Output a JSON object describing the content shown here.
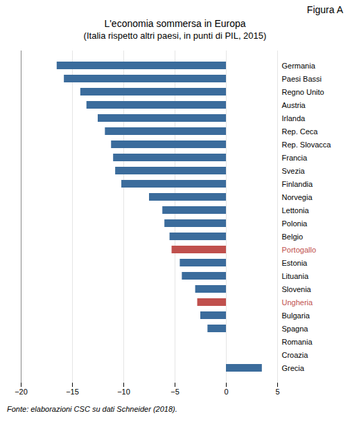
{
  "chart_data": {
    "type": "bar",
    "orientation": "horizontal",
    "title": "L'economia sommersa in Europa",
    "subtitle": "(Italia rispetto altri paesi, in punti di PIL, 2015)",
    "annotations": [
      "Figura A"
    ],
    "caption": "Fonte: elaborazioni CSC su dati Schneider (2018).",
    "categories": [
      "Germania",
      "Paesi Bassi",
      "Regno Unito",
      "Austria",
      "Irlanda",
      "Rep. Ceca",
      "Rep. Slovacca",
      "Francia",
      "Svezia",
      "Finlandia",
      "Norvegia",
      "Lettonia",
      "Polonia",
      "Belgio",
      "Portogallo",
      "Estonia",
      "Lituania",
      "Slovenia",
      "Ungheria",
      "Bulgaria",
      "Spagna",
      "Romania",
      "Croazia",
      "Grecia"
    ],
    "values": [
      -16.5,
      -15.8,
      -14.2,
      -13.6,
      -12.5,
      -11.8,
      -11.2,
      -11.0,
      -10.8,
      -10.2,
      -7.5,
      -6.2,
      -6.0,
      -5.5,
      -5.3,
      -4.5,
      -4.3,
      -3.0,
      -2.8,
      -2.5,
      -1.8,
      0.0,
      0.0,
      3.5
    ],
    "color": "#3B6C9C",
    "colors": [
      "#3B6C9C",
      "#3B6C9C",
      "#3B6C9C",
      "#3B6C9C",
      "#3B6C9C",
      "#3B6C9C",
      "#3B6C9C",
      "#3B6C9C",
      "#3B6C9C",
      "#3B6C9C",
      "#3B6C9C",
      "#3B6C9C",
      "#3B6C9C",
      "#3B6C9C",
      "#C0504D",
      "#3B6C9C",
      "#3B6C9C",
      "#3B6C9C",
      "#C0504D",
      "#3B6C9C",
      "#3B6C9C",
      "#3B6C9C",
      "#3B6C9C",
      "#3B6C9C"
    ],
    "xlim": [
      -20,
      5
    ],
    "xticks": [
      -20,
      -15,
      -10,
      -5,
      0,
      5
    ],
    "grid": true
  }
}
